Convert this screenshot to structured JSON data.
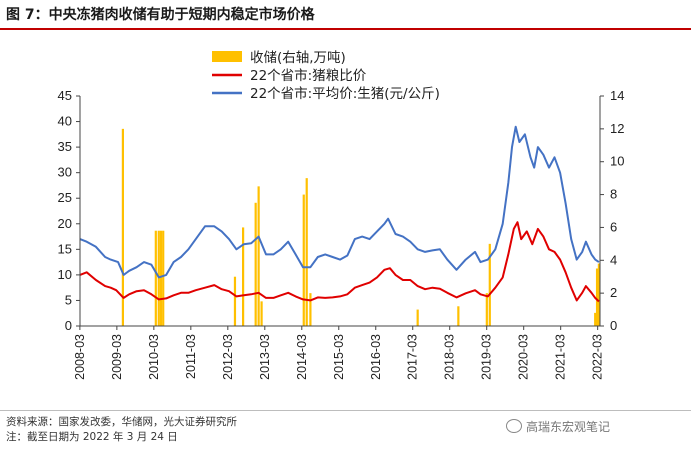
{
  "page": {
    "title": "图 7：中央冻猪肉收储有助于短期内稳定市场价格"
  },
  "footer": {
    "source": "资料来源：国家发改委，华储网，光大证券研究所",
    "note": "注：截至日期为 2022 年 3 月 24 日",
    "watermark": "高瑞东宏观笔记"
  },
  "chart_data": {
    "type": "line",
    "title": "",
    "xlabel": "",
    "ylabel_left": "",
    "ylabel_right": "",
    "x_ticks": [
      "2008-03",
      "2009-03",
      "2010-03",
      "2011-03",
      "2012-03",
      "2013-03",
      "2014-03",
      "2015-03",
      "2016-03",
      "2017-03",
      "2018-03",
      "2019-03",
      "2020-03",
      "2021-03",
      "2022-03"
    ],
    "x_range": [
      2008.17,
      2022.23
    ],
    "y_left": {
      "min": 0,
      "max": 45,
      "ticks": [
        "0",
        "5",
        "10",
        "15",
        "20",
        "25",
        "30",
        "35",
        "40",
        "45"
      ]
    },
    "y_right": {
      "min": 0,
      "max": 14,
      "ticks": [
        "0",
        "2",
        "4",
        "6",
        "8",
        "10",
        "12",
        "14"
      ]
    },
    "legend_position": "top-center",
    "grid": false,
    "colors": {
      "storage": "#ffc000",
      "ratio": "#e00000",
      "price": "#4472c4"
    },
    "series": [
      {
        "name": "收储(右轴,万吨)",
        "type": "bar",
        "axis": "right",
        "points": [
          [
            2009.33,
            12.0
          ],
          [
            2010.22,
            5.8
          ],
          [
            2010.3,
            5.8
          ],
          [
            2010.36,
            5.8
          ],
          [
            2010.42,
            5.8
          ],
          [
            2012.36,
            3.0
          ],
          [
            2012.58,
            6.0
          ],
          [
            2012.92,
            7.5
          ],
          [
            2013.0,
            8.5
          ],
          [
            2013.08,
            1.5
          ],
          [
            2014.22,
            8.0
          ],
          [
            2014.3,
            9.0
          ],
          [
            2014.4,
            2.0
          ],
          [
            2017.3,
            1.0
          ],
          [
            2018.4,
            1.2
          ],
          [
            2019.17,
            2.0
          ],
          [
            2019.25,
            5.0
          ],
          [
            2022.1,
            0.8
          ],
          [
            2022.15,
            3.5
          ],
          [
            2022.2,
            3.8
          ]
        ]
      },
      {
        "name": "22个省市:猪粮比价",
        "axis": "left",
        "points": [
          [
            2008.17,
            10.0
          ],
          [
            2008.35,
            10.5
          ],
          [
            2008.6,
            9.0
          ],
          [
            2008.85,
            7.8
          ],
          [
            2009.0,
            7.5
          ],
          [
            2009.15,
            7.0
          ],
          [
            2009.35,
            5.5
          ],
          [
            2009.5,
            6.2
          ],
          [
            2009.7,
            6.8
          ],
          [
            2009.9,
            7.0
          ],
          [
            2010.1,
            6.2
          ],
          [
            2010.3,
            5.2
          ],
          [
            2010.5,
            5.4
          ],
          [
            2010.7,
            6.0
          ],
          [
            2010.9,
            6.5
          ],
          [
            2011.1,
            6.5
          ],
          [
            2011.3,
            7.0
          ],
          [
            2011.55,
            7.5
          ],
          [
            2011.8,
            8.0
          ],
          [
            2012.0,
            7.2
          ],
          [
            2012.2,
            6.8
          ],
          [
            2012.4,
            5.8
          ],
          [
            2012.6,
            6.0
          ],
          [
            2012.8,
            6.2
          ],
          [
            2013.0,
            6.5
          ],
          [
            2013.2,
            5.5
          ],
          [
            2013.4,
            5.5
          ],
          [
            2013.6,
            6.0
          ],
          [
            2013.8,
            6.5
          ],
          [
            2014.0,
            5.8
          ],
          [
            2014.2,
            5.2
          ],
          [
            2014.4,
            5.0
          ],
          [
            2014.6,
            5.6
          ],
          [
            2014.8,
            5.5
          ],
          [
            2015.0,
            5.6
          ],
          [
            2015.2,
            5.8
          ],
          [
            2015.4,
            6.2
          ],
          [
            2015.6,
            7.5
          ],
          [
            2015.8,
            8.0
          ],
          [
            2016.0,
            8.5
          ],
          [
            2016.2,
            9.5
          ],
          [
            2016.4,
            11.0
          ],
          [
            2016.55,
            11.3
          ],
          [
            2016.7,
            10.0
          ],
          [
            2016.9,
            9.0
          ],
          [
            2017.1,
            9.0
          ],
          [
            2017.3,
            7.8
          ],
          [
            2017.5,
            7.2
          ],
          [
            2017.7,
            7.5
          ],
          [
            2017.9,
            7.3
          ],
          [
            2018.1,
            6.5
          ],
          [
            2018.35,
            5.6
          ],
          [
            2018.6,
            6.4
          ],
          [
            2018.85,
            7.0
          ],
          [
            2019.0,
            6.2
          ],
          [
            2019.2,
            5.8
          ],
          [
            2019.4,
            7.5
          ],
          [
            2019.6,
            9.5
          ],
          [
            2019.75,
            14.0
          ],
          [
            2019.9,
            19.0
          ],
          [
            2020.0,
            20.3
          ],
          [
            2020.1,
            17.0
          ],
          [
            2020.25,
            18.5
          ],
          [
            2020.4,
            16.0
          ],
          [
            2020.55,
            19.0
          ],
          [
            2020.7,
            17.5
          ],
          [
            2020.85,
            15.0
          ],
          [
            2021.0,
            14.5
          ],
          [
            2021.15,
            13.0
          ],
          [
            2021.3,
            10.5
          ],
          [
            2021.45,
            7.5
          ],
          [
            2021.6,
            5.0
          ],
          [
            2021.75,
            6.5
          ],
          [
            2021.85,
            7.8
          ],
          [
            2022.0,
            6.5
          ],
          [
            2022.1,
            5.5
          ],
          [
            2022.2,
            4.8
          ]
        ]
      },
      {
        "name": "22个省市:平均价:生猪(元/公斤)",
        "axis": "left",
        "points": [
          [
            2008.17,
            17.0
          ],
          [
            2008.35,
            16.5
          ],
          [
            2008.6,
            15.5
          ],
          [
            2008.85,
            13.5
          ],
          [
            2009.0,
            13.0
          ],
          [
            2009.2,
            12.5
          ],
          [
            2009.35,
            10.0
          ],
          [
            2009.5,
            10.8
          ],
          [
            2009.7,
            11.5
          ],
          [
            2009.9,
            12.5
          ],
          [
            2010.1,
            12.0
          ],
          [
            2010.3,
            9.5
          ],
          [
            2010.5,
            10.0
          ],
          [
            2010.7,
            12.5
          ],
          [
            2010.9,
            13.5
          ],
          [
            2011.1,
            15.0
          ],
          [
            2011.3,
            17.0
          ],
          [
            2011.55,
            19.5
          ],
          [
            2011.8,
            19.5
          ],
          [
            2012.0,
            18.5
          ],
          [
            2012.2,
            17.0
          ],
          [
            2012.4,
            15.0
          ],
          [
            2012.6,
            16.0
          ],
          [
            2012.8,
            16.2
          ],
          [
            2013.0,
            17.5
          ],
          [
            2013.2,
            14.0
          ],
          [
            2013.4,
            14.0
          ],
          [
            2013.6,
            15.0
          ],
          [
            2013.8,
            16.5
          ],
          [
            2014.0,
            14.0
          ],
          [
            2014.2,
            11.5
          ],
          [
            2014.4,
            11.5
          ],
          [
            2014.6,
            13.5
          ],
          [
            2014.8,
            14.0
          ],
          [
            2015.0,
            13.5
          ],
          [
            2015.2,
            13.0
          ],
          [
            2015.4,
            13.8
          ],
          [
            2015.6,
            17.0
          ],
          [
            2015.8,
            17.5
          ],
          [
            2016.0,
            17.0
          ],
          [
            2016.2,
            18.5
          ],
          [
            2016.4,
            20.0
          ],
          [
            2016.5,
            21.0
          ],
          [
            2016.7,
            18.0
          ],
          [
            2016.9,
            17.5
          ],
          [
            2017.1,
            16.5
          ],
          [
            2017.3,
            15.0
          ],
          [
            2017.5,
            14.5
          ],
          [
            2017.7,
            14.8
          ],
          [
            2017.9,
            15.0
          ],
          [
            2018.1,
            13.0
          ],
          [
            2018.35,
            11.0
          ],
          [
            2018.6,
            13.0
          ],
          [
            2018.85,
            14.5
          ],
          [
            2019.0,
            12.5
          ],
          [
            2019.2,
            13.0
          ],
          [
            2019.4,
            15.0
          ],
          [
            2019.6,
            20.0
          ],
          [
            2019.75,
            28.0
          ],
          [
            2019.85,
            35.0
          ],
          [
            2019.95,
            39.0
          ],
          [
            2020.05,
            36.0
          ],
          [
            2020.2,
            37.5
          ],
          [
            2020.35,
            33.0
          ],
          [
            2020.45,
            31.0
          ],
          [
            2020.55,
            35.0
          ],
          [
            2020.7,
            33.5
          ],
          [
            2020.85,
            31.0
          ],
          [
            2021.0,
            33.0
          ],
          [
            2021.15,
            30.0
          ],
          [
            2021.3,
            24.0
          ],
          [
            2021.45,
            17.0
          ],
          [
            2021.6,
            13.0
          ],
          [
            2021.75,
            14.5
          ],
          [
            2021.85,
            16.5
          ],
          [
            2022.0,
            14.0
          ],
          [
            2022.1,
            13.0
          ],
          [
            2022.2,
            12.5
          ]
        ]
      }
    ]
  }
}
